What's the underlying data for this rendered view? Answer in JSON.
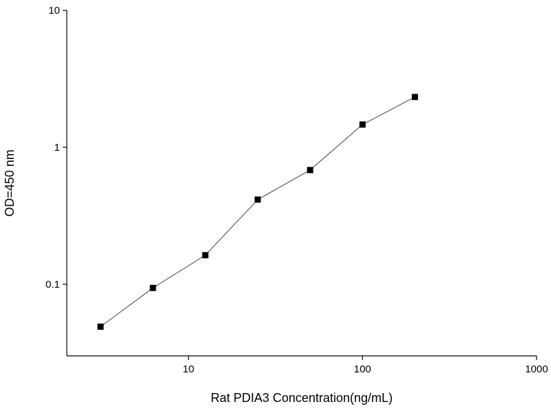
{
  "chart_data": {
    "type": "line",
    "x_label": "Rat PDIA3 Concentration(ng/mL)",
    "y_label": "OD=450 nm",
    "x": [
      3.125,
      6.25,
      12.5,
      25,
      50,
      100,
      200
    ],
    "series": [
      {
        "color": "#000000",
        "values": [
          0.049,
          0.094,
          0.163,
          0.415,
          0.682,
          1.466,
          2.33
        ]
      }
    ],
    "xlim": [
      2,
      1000
    ],
    "ylim": [
      0.03,
      10
    ],
    "xticks": [
      10,
      100,
      1000
    ],
    "yticks": [
      0.1,
      1,
      10
    ],
    "xscale": "log",
    "yscale": "log"
  }
}
